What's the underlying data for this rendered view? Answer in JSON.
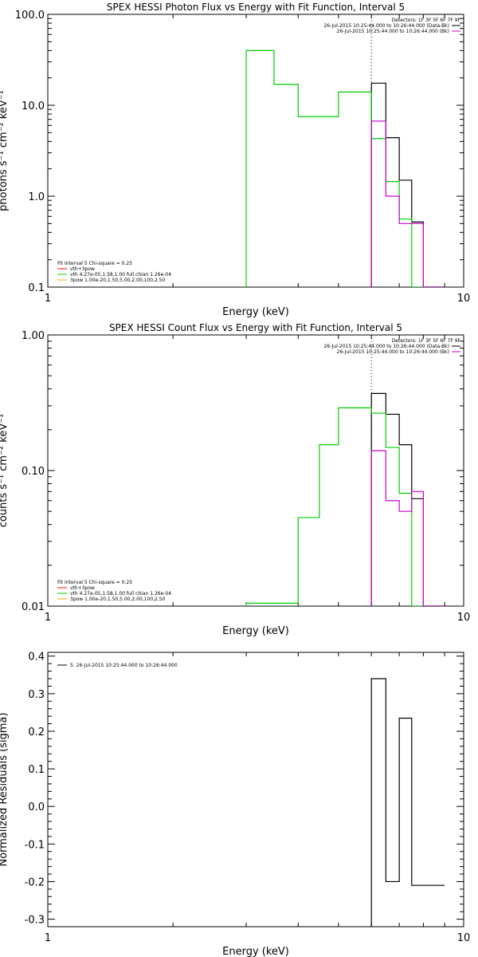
{
  "chart_data": [
    {
      "type": "line",
      "title": "SPEX HESSI Photon Flux vs Energy with Fit Function, Interval 5",
      "xlabel": "Energy (keV)",
      "ylabel": "photons s⁻¹ cm⁻² keV⁻¹",
      "xscale": "log",
      "yscale": "log",
      "xlim": [
        1,
        10
      ],
      "ylim": [
        0.1,
        100
      ],
      "xticks": [
        {
          "v": 1,
          "label": "1"
        },
        {
          "v": 10,
          "label": "10"
        }
      ],
      "yticks": [
        {
          "v": 0.1,
          "label": "0.1"
        },
        {
          "v": 1,
          "label": "1.0"
        },
        {
          "v": 10,
          "label": "10.0"
        },
        {
          "v": 100,
          "label": "100.0"
        }
      ],
      "dotted_x": 6.0,
      "legend_top": {
        "lines": [
          {
            "text": "Detectors: 1F 3F 5F 6F 7F 9F",
            "color": "#000000"
          },
          {
            "text": "26-Jul-2015 10:25:44.000 to 10:26:44.000 (Data-Bk)",
            "color": "#000000"
          },
          {
            "text": "26-Jul-2015 10:25:44.000 to 10:26:44.000 (Bk)",
            "color": "#cc00cc"
          }
        ]
      },
      "legend_bottom": {
        "header": "Fit Interval  5   Chi-square = 0.25",
        "lines": [
          {
            "text": "vth+3pow",
            "color": "#ff0000"
          },
          {
            "text": "vth 4.27e-05,1.58,1.00  full chian 1.26e-04",
            "color": "#00cc00"
          },
          {
            "text": "3pow 1.00e-20,1.50,5.00,2.00,100,2.50",
            "color": "#ffaa00"
          }
        ]
      },
      "series": [
        {
          "color": "#000000",
          "edges": [
            6.0,
            6.5,
            7.0,
            7.5,
            8.0,
            9.0
          ],
          "values": [
            17.5,
            4.4,
            1.5,
            0.52,
            0.09
          ]
        },
        {
          "color": "#00cc00",
          "edges": [
            3.0,
            3.5,
            4.0,
            5.0,
            6.0,
            6.5,
            7.0,
            7.5,
            8.0,
            9.0
          ],
          "values": [
            40,
            17,
            7.5,
            14,
            4.3,
            1.45,
            0.56,
            0.09,
            0.09
          ]
        },
        {
          "color": "#cc00cc",
          "edges": [
            6.0,
            6.5,
            7.0,
            7.5,
            8.0,
            9.0
          ],
          "values": [
            6.7,
            1.0,
            0.5,
            0.5,
            0.09
          ]
        }
      ]
    },
    {
      "type": "line",
      "title": "SPEX HESSI Count Flux vs Energy with Fit Function, Interval 5",
      "xlabel": "Energy (keV)",
      "ylabel": "counts s⁻¹ cm⁻² keV⁻¹",
      "xscale": "log",
      "yscale": "log",
      "xlim": [
        1,
        10
      ],
      "ylim": [
        0.01,
        1
      ],
      "xticks": [
        {
          "v": 1,
          "label": "1"
        },
        {
          "v": 10,
          "label": "10"
        }
      ],
      "yticks": [
        {
          "v": 0.01,
          "label": "0.01"
        },
        {
          "v": 0.1,
          "label": "0.10"
        },
        {
          "v": 1,
          "label": "1.00"
        }
      ],
      "dotted_x": 6.0,
      "legend_top": {
        "lines": [
          {
            "text": "Detectors: 1F 3F 5F 6F 7F 9F",
            "color": "#000000"
          },
          {
            "text": "26-Jul-2015 10:25:44.000 to 10:26:44.000 (Data-Bk)",
            "color": "#000000"
          },
          {
            "text": "26-Jul-2015 10:25:44.000 to 10:26:44.000 (Bk)",
            "color": "#cc00cc"
          }
        ]
      },
      "legend_bottom": {
        "header": "Fit Interval  5   Chi-square = 0.25",
        "lines": [
          {
            "text": "vth+3pow",
            "color": "#ff0000"
          },
          {
            "text": "vth 4.27e-05,1.58,1.00  full chian 1.26e-04",
            "color": "#00cc00"
          },
          {
            "text": "3pow 1.00e-20,1.50,5.00,2.00,100,2.50",
            "color": "#ffaa00"
          }
        ]
      },
      "series": [
        {
          "color": "#000000",
          "edges": [
            6.0,
            6.5,
            7.0,
            7.5,
            8.0,
            9.0
          ],
          "values": [
            0.37,
            0.26,
            0.155,
            0.062,
            0.009
          ]
        },
        {
          "color": "#00cc00",
          "edges": [
            3.0,
            4.0,
            4.5,
            5.0,
            6.0,
            6.5,
            7.0,
            7.5,
            8.0,
            9.0
          ],
          "values": [
            0.0105,
            0.045,
            0.155,
            0.29,
            0.265,
            0.148,
            0.068,
            0.009,
            0.009
          ]
        },
        {
          "color": "#cc00cc",
          "edges": [
            6.0,
            6.5,
            7.0,
            7.5,
            8.0,
            9.0
          ],
          "values": [
            0.14,
            0.06,
            0.05,
            0.07,
            0.009
          ]
        }
      ]
    },
    {
      "type": "line",
      "title": "",
      "xlabel": "Energy (keV)",
      "ylabel": "Normalized Residuals (sigma)",
      "xscale": "log",
      "yscale": "linear",
      "xlim": [
        1,
        10
      ],
      "ylim": [
        -0.32,
        0.41
      ],
      "xticks": [
        {
          "v": 1,
          "label": "1"
        },
        {
          "v": 10,
          "label": "10"
        }
      ],
      "yticks": [
        {
          "v": -0.3,
          "label": "-0.3"
        },
        {
          "v": -0.2,
          "label": "-0.2"
        },
        {
          "v": -0.1,
          "label": "-0.1"
        },
        {
          "v": 0.0,
          "label": "0.0"
        },
        {
          "v": 0.1,
          "label": "0.1"
        },
        {
          "v": 0.2,
          "label": "0.2"
        },
        {
          "v": 0.3,
          "label": "0.3"
        },
        {
          "v": 0.4,
          "label": "0.4"
        }
      ],
      "legend_top": {
        "lines": [
          {
            "text": "5. 26-Jul-2015 10:25:44.000 to 10:26:44.000",
            "color": "#000000"
          }
        ]
      },
      "series": [
        {
          "color": "#000000",
          "edges": [
            6.0,
            6.5,
            7.0,
            7.5,
            8.0,
            9.0
          ],
          "values": [
            0.34,
            -0.2,
            0.235,
            -0.21,
            -0.21
          ]
        }
      ]
    }
  ]
}
